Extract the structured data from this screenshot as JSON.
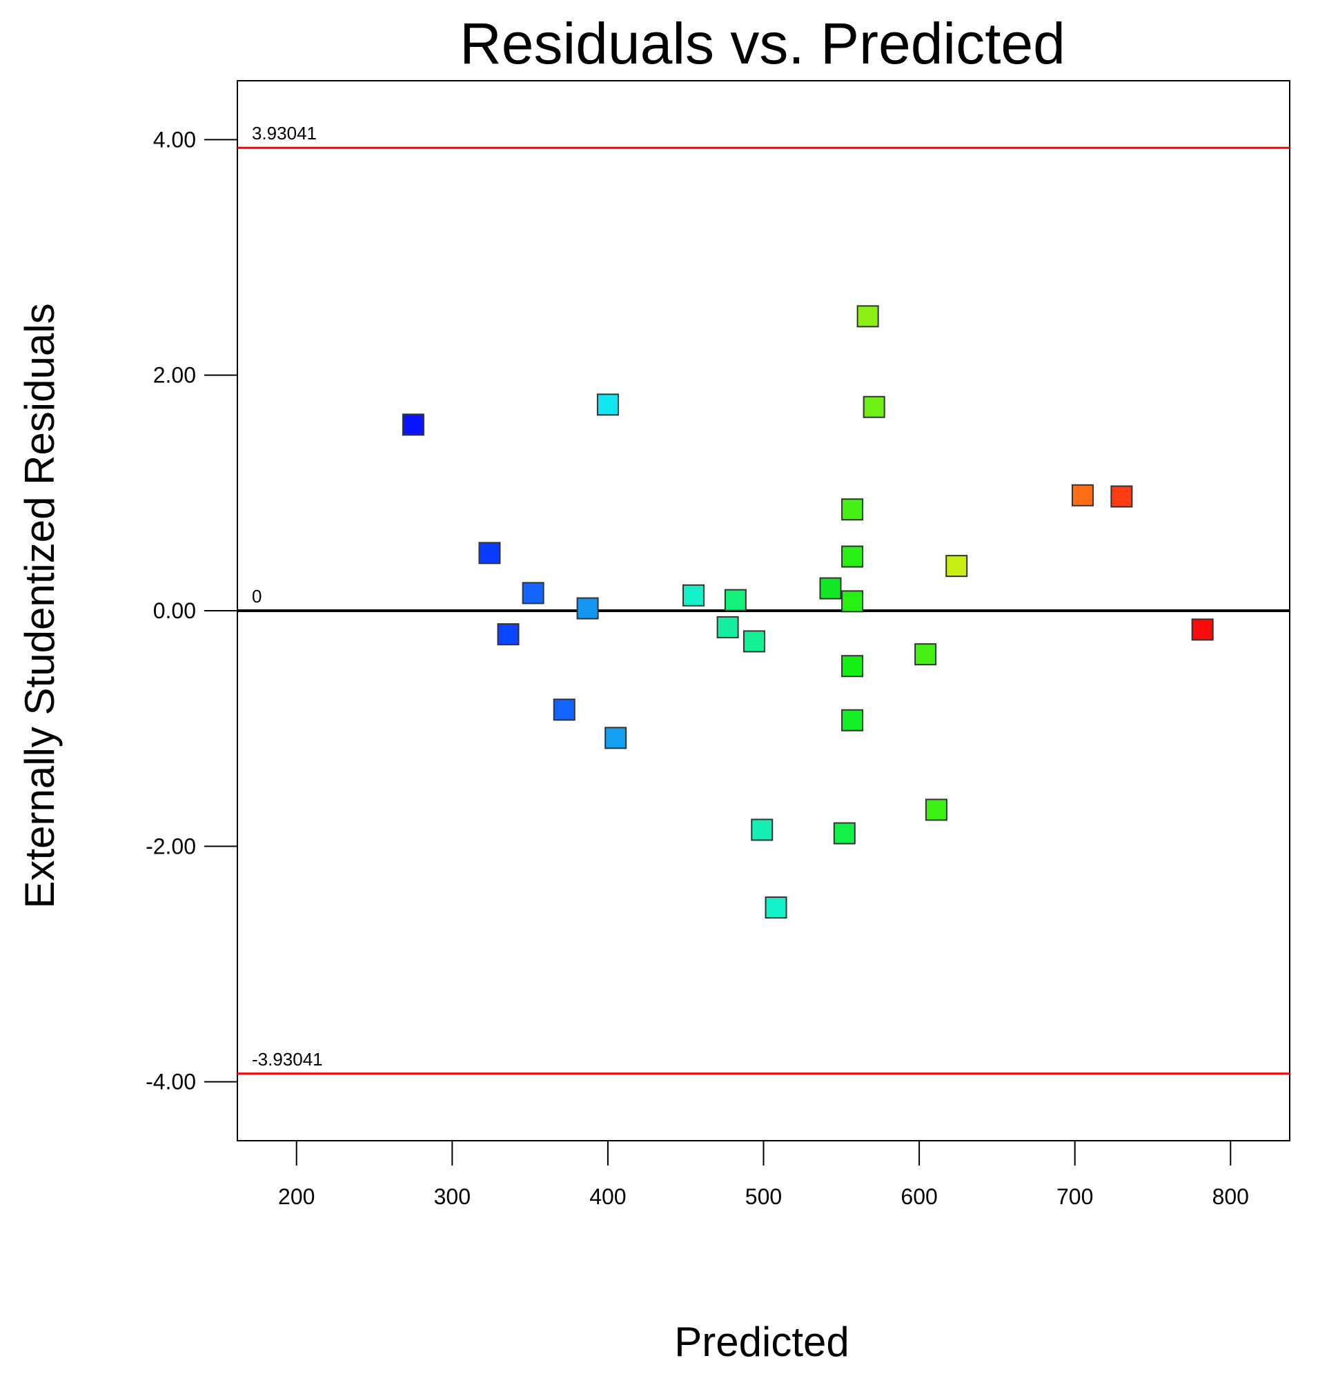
{
  "chart_data": {
    "type": "scatter",
    "title": "Residuals vs. Predicted",
    "xlabel": "Predicted",
    "ylabel": "Externally Studentized Residuals",
    "xlim": [
      162,
      838
    ],
    "ylim": [
      -4.5,
      4.5
    ],
    "x_ticks": [
      200,
      300,
      400,
      500,
      600,
      700,
      800
    ],
    "x_tick_labels": [
      "200",
      "300",
      "400",
      "500",
      "600",
      "700",
      "800"
    ],
    "y_ticks": [
      4,
      2,
      0,
      -2,
      -4
    ],
    "y_tick_labels": [
      "4.00",
      "2.00",
      "0.00",
      "-2.00",
      "-4.00"
    ],
    "grid": false,
    "reference_lines": [
      {
        "name": "upper-limit",
        "value": 3.93041,
        "label": "3.93041",
        "color": "#ff0000"
      },
      {
        "name": "zero-line",
        "value": 0,
        "label": "0",
        "color": "#000000"
      },
      {
        "name": "lower-limit",
        "value": -3.93041,
        "label": "-3.93041",
        "color": "#ff0000"
      }
    ],
    "points": [
      {
        "x": 275,
        "y": 1.58,
        "color": "#0a14ff"
      },
      {
        "x": 324,
        "y": 0.49,
        "color": "#0a3cff"
      },
      {
        "x": 336,
        "y": -0.2,
        "color": "#0a46ff"
      },
      {
        "x": 352,
        "y": 0.15,
        "color": "#1464ff"
      },
      {
        "x": 372,
        "y": -0.84,
        "color": "#1464ff"
      },
      {
        "x": 387,
        "y": 0.02,
        "color": "#1496f0"
      },
      {
        "x": 400,
        "y": 1.75,
        "color": "#14e6f0"
      },
      {
        "x": 405,
        "y": -1.08,
        "color": "#14a0f0"
      },
      {
        "x": 455,
        "y": 0.13,
        "color": "#14f0c8"
      },
      {
        "x": 477,
        "y": -0.14,
        "color": "#14f0a0"
      },
      {
        "x": 482,
        "y": 0.09,
        "color": "#14f078"
      },
      {
        "x": 494,
        "y": -0.26,
        "color": "#14f096"
      },
      {
        "x": 499,
        "y": -1.86,
        "color": "#14f0b4"
      },
      {
        "x": 508,
        "y": -2.52,
        "color": "#14f0c8"
      },
      {
        "x": 543,
        "y": 0.19,
        "color": "#14e628"
      },
      {
        "x": 552,
        "y": -1.89,
        "color": "#14f046"
      },
      {
        "x": 557,
        "y": 0.86,
        "color": "#46f014"
      },
      {
        "x": 557,
        "y": 0.46,
        "color": "#28f014"
      },
      {
        "x": 557,
        "y": 0.08,
        "color": "#28f014"
      },
      {
        "x": 557,
        "y": -0.47,
        "color": "#14f014"
      },
      {
        "x": 557,
        "y": -0.93,
        "color": "#14f028"
      },
      {
        "x": 567,
        "y": 2.5,
        "color": "#8cf014"
      },
      {
        "x": 571,
        "y": 1.73,
        "color": "#6ef014"
      },
      {
        "x": 604,
        "y": -0.37,
        "color": "#46f014"
      },
      {
        "x": 611,
        "y": -1.69,
        "color": "#3cf014"
      },
      {
        "x": 624,
        "y": 0.38,
        "color": "#c8f014"
      },
      {
        "x": 705,
        "y": 0.98,
        "color": "#ff6e14"
      },
      {
        "x": 730,
        "y": 0.97,
        "color": "#ff3c14"
      },
      {
        "x": 782,
        "y": -0.16,
        "color": "#ff0a0a"
      }
    ]
  }
}
